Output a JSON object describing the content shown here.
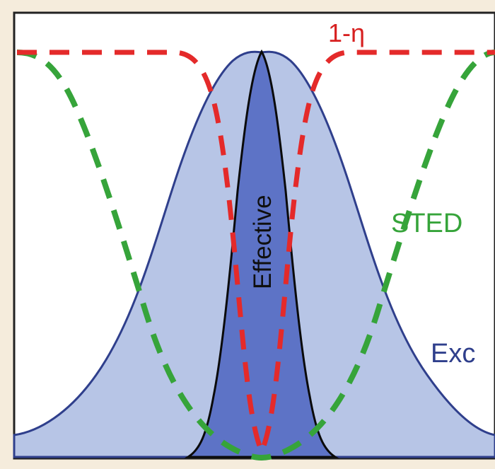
{
  "labels": {
    "one_minus_eta": "1-η",
    "sted": "STED",
    "exc": "Exc",
    "effective": "Effective"
  },
  "colors": {
    "background_frame": "#f5ecdc",
    "plot_background": "#ffffff",
    "excitation_fill": "#b7c5e6",
    "excitation_stroke": "#2f3f8c",
    "effective_fill": "#5d73c6",
    "effective_stroke": "#0a0a0a",
    "sted_dashed": "#36a43a",
    "one_minus_eta_dashed": "#e42a2a",
    "sted_label": "#36a43a",
    "one_minus_eta_label": "#d72020",
    "exc_label": "#2f3f8c",
    "effective_label": "#0f0f0f"
  }
}
